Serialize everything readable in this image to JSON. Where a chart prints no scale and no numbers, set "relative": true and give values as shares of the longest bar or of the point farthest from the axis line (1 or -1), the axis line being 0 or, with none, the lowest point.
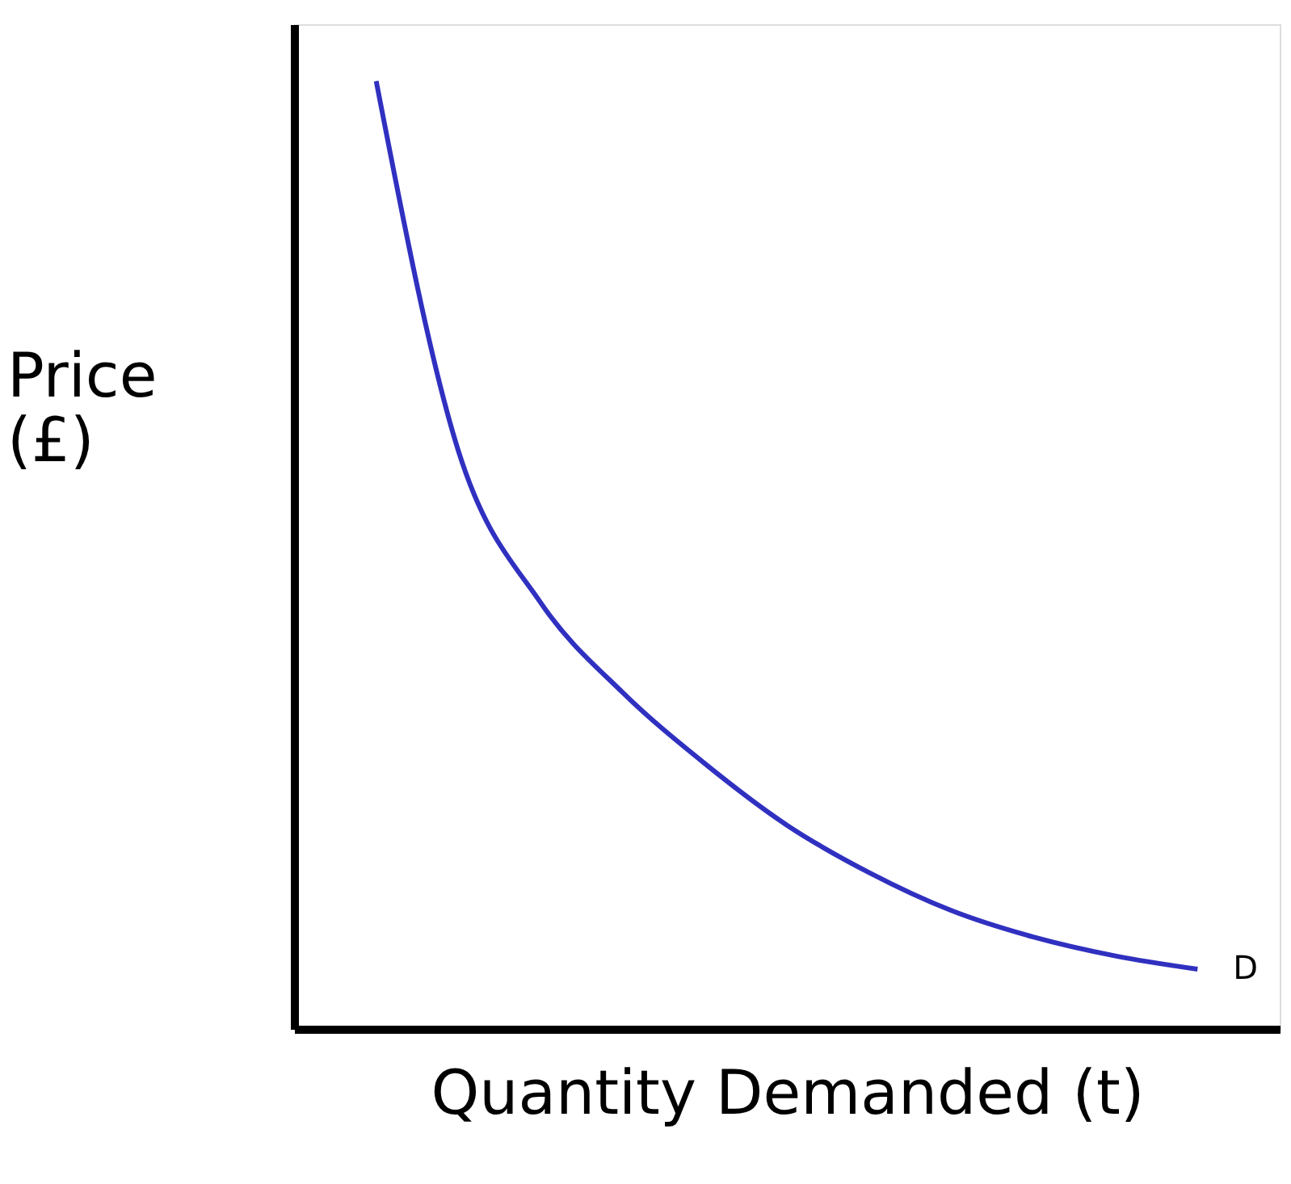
{
  "chart_data": {
    "type": "line",
    "relative": true,
    "xlabel": "Quantity Demanded (t)",
    "ylabel": "Price (£)",
    "categories": [
      null,
      null,
      null,
      null,
      null,
      null,
      null,
      null,
      null,
      null,
      null
    ],
    "series": [
      {
        "color": "#3030c0",
        "values": [
          1,
          0.61,
          0.45,
          0.355,
          0.28,
          0.215,
          0.165,
          0.125,
          0.097,
          0.077,
          0.063
        ]
      }
    ],
    "annotations": [
      "D"
    ],
    "tick_labels": false,
    "grid": false,
    "marker": "none",
    "line_style": "solid"
  }
}
